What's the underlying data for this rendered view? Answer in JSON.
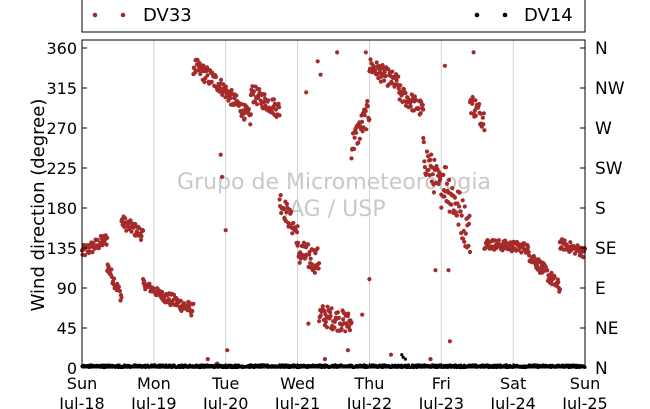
{
  "chart_data": {
    "type": "scatter",
    "title": "",
    "xlabel": "",
    "ylabel": "Wind direction (degree)",
    "ylim": [
      0,
      370
    ],
    "xlim": [
      0,
      7
    ],
    "grid": "vertical",
    "legend_position": "top",
    "watermark": [
      "Grupo de Micrometeorologia",
      "IAG / USP"
    ],
    "x_ticks": [
      {
        "x": 0,
        "day": "Sun",
        "date": "Jul-18"
      },
      {
        "x": 1,
        "day": "Mon",
        "date": "Jul-19"
      },
      {
        "x": 2,
        "day": "Tue",
        "date": "Jul-20"
      },
      {
        "x": 3,
        "day": "Wed",
        "date": "Jul-21"
      },
      {
        "x": 4,
        "day": "Thu",
        "date": "Jul-22"
      },
      {
        "x": 5,
        "day": "Fri",
        "date": "Jul-23"
      },
      {
        "x": 6,
        "day": "Sat",
        "date": "Jul-24"
      },
      {
        "x": 7,
        "day": "Sun",
        "date": "Jul-25"
      }
    ],
    "y_ticks": [
      0,
      45,
      90,
      135,
      180,
      225,
      270,
      315,
      360
    ],
    "y2_ticks": [
      {
        "value": 0,
        "label": "N"
      },
      {
        "value": 45,
        "label": "NE"
      },
      {
        "value": 90,
        "label": "E"
      },
      {
        "value": 135,
        "label": "SE"
      },
      {
        "value": 180,
        "label": "S"
      },
      {
        "value": 225,
        "label": "SW"
      },
      {
        "value": 270,
        "label": "W"
      },
      {
        "value": 315,
        "label": "NW"
      },
      {
        "value": 360,
        "label": "N"
      }
    ],
    "series": [
      {
        "name": "DV33",
        "color": "#a52a2a",
        "segments": [
          {
            "x0": 0.0,
            "x1": 0.35,
            "y0": 130,
            "y1": 145,
            "spread": 15
          },
          {
            "x0": 0.35,
            "x1": 0.55,
            "y0": 115,
            "y1": 80,
            "spread": 14
          },
          {
            "x0": 0.55,
            "x1": 0.85,
            "y0": 165,
            "y1": 150,
            "spread": 15
          },
          {
            "x0": 0.85,
            "x1": 1.15,
            "y0": 95,
            "y1": 80,
            "spread": 10
          },
          {
            "x0": 1.15,
            "x1": 1.55,
            "y0": 80,
            "y1": 65,
            "spread": 15
          },
          {
            "x0": 1.55,
            "x1": 1.9,
            "y0": 340,
            "y1": 320,
            "spread": 20
          },
          {
            "x0": 1.9,
            "x1": 2.35,
            "y0": 320,
            "y1": 280,
            "spread": 18
          },
          {
            "x0": 2.35,
            "x1": 2.75,
            "y0": 310,
            "y1": 290,
            "spread": 20
          },
          {
            "x0": 2.75,
            "x1": 3.0,
            "y0": 190,
            "y1": 150,
            "spread": 25
          },
          {
            "x0": 3.0,
            "x1": 3.3,
            "y0": 130,
            "y1": 120,
            "spread": 30
          },
          {
            "x0": 3.3,
            "x1": 3.75,
            "y0": 60,
            "y1": 50,
            "spread": 25
          },
          {
            "x0": 3.75,
            "x1": 4.0,
            "y0": 250,
            "y1": 290,
            "spread": 30
          },
          {
            "x0": 4.0,
            "x1": 4.4,
            "y0": 340,
            "y1": 320,
            "spread": 20
          },
          {
            "x0": 4.4,
            "x1": 4.75,
            "y0": 310,
            "y1": 290,
            "spread": 20
          },
          {
            "x0": 4.75,
            "x1": 5.0,
            "y0": 240,
            "y1": 200,
            "spread": 40
          },
          {
            "x0": 5.0,
            "x1": 5.4,
            "y0": 220,
            "y1": 150,
            "spread": 50
          },
          {
            "x0": 5.4,
            "x1": 5.6,
            "y0": 300,
            "y1": 280,
            "spread": 25
          },
          {
            "x0": 5.6,
            "x1": 6.2,
            "y0": 140,
            "y1": 135,
            "spread": 12
          },
          {
            "x0": 6.2,
            "x1": 6.65,
            "y0": 130,
            "y1": 90,
            "spread": 15
          },
          {
            "x0": 6.65,
            "x1": 7.0,
            "y0": 140,
            "y1": 130,
            "spread": 12
          }
        ],
        "outliers": [
          {
            "x": 1.93,
            "y": 240
          },
          {
            "x": 1.95,
            "y": 215
          },
          {
            "x": 2.0,
            "y": 155
          },
          {
            "x": 2.02,
            "y": 20
          },
          {
            "x": 1.75,
            "y": 10
          },
          {
            "x": 1.88,
            "y": 5
          },
          {
            "x": 3.28,
            "y": 345
          },
          {
            "x": 3.32,
            "y": 330
          },
          {
            "x": 3.12,
            "y": 310
          },
          {
            "x": 3.55,
            "y": 355
          },
          {
            "x": 3.7,
            "y": 20
          },
          {
            "x": 3.38,
            "y": 10
          },
          {
            "x": 3.95,
            "y": 355
          },
          {
            "x": 3.9,
            "y": 60
          },
          {
            "x": 4.3,
            "y": 15
          },
          {
            "x": 4.85,
            "y": 10
          },
          {
            "x": 5.05,
            "y": 340
          },
          {
            "x": 5.12,
            "y": 30
          },
          {
            "x": 4.92,
            "y": 110
          },
          {
            "x": 5.1,
            "y": 110
          },
          {
            "x": 5.45,
            "y": 355
          },
          {
            "x": 3.15,
            "y": 50
          },
          {
            "x": 2.88,
            "y": 160
          },
          {
            "x": 4.0,
            "y": 100
          }
        ]
      },
      {
        "name": "DV14",
        "color": "#000000",
        "segments": [
          {
            "x0": 0.0,
            "x1": 7.0,
            "y0": 2,
            "y1": 2,
            "spread": 3
          }
        ],
        "outliers": [
          {
            "x": 4.45,
            "y": 15
          },
          {
            "x": 4.47,
            "y": 12
          },
          {
            "x": 4.5,
            "y": 10
          }
        ]
      }
    ]
  }
}
